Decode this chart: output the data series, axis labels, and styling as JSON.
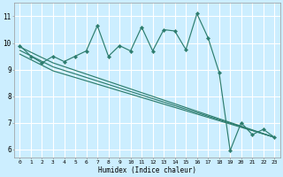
{
  "xlabel": "Humidex (Indice chaleur)",
  "bg_color": "#cceeff",
  "grid_color": "#ffffff",
  "line_color": "#2d7d6e",
  "xlim": [
    -0.5,
    23.5
  ],
  "ylim": [
    5.7,
    11.5
  ],
  "xticks": [
    0,
    1,
    2,
    3,
    4,
    5,
    6,
    7,
    8,
    9,
    10,
    11,
    12,
    13,
    14,
    15,
    16,
    17,
    18,
    19,
    20,
    21,
    22,
    23
  ],
  "yticks": [
    6,
    7,
    8,
    9,
    10,
    11
  ],
  "series1_x": [
    0,
    1,
    2,
    3,
    4,
    5,
    6,
    7,
    8,
    9,
    10,
    11,
    12,
    13,
    14,
    15,
    16,
    17,
    18,
    19,
    20,
    21,
    22,
    23
  ],
  "series1_y": [
    9.9,
    9.5,
    9.25,
    9.5,
    9.3,
    9.5,
    9.7,
    10.65,
    9.5,
    9.9,
    9.7,
    10.6,
    9.7,
    10.5,
    10.45,
    9.75,
    11.1,
    10.2,
    8.9,
    5.95,
    7.0,
    6.55,
    6.75,
    6.45
  ],
  "series2_x": [
    0,
    3,
    23
  ],
  "series2_y": [
    9.85,
    9.25,
    6.45
  ],
  "series3_x": [
    0,
    3,
    23
  ],
  "series3_y": [
    9.72,
    9.1,
    6.45
  ],
  "series4_x": [
    0,
    3,
    23
  ],
  "series4_y": [
    9.58,
    8.95,
    6.45
  ]
}
